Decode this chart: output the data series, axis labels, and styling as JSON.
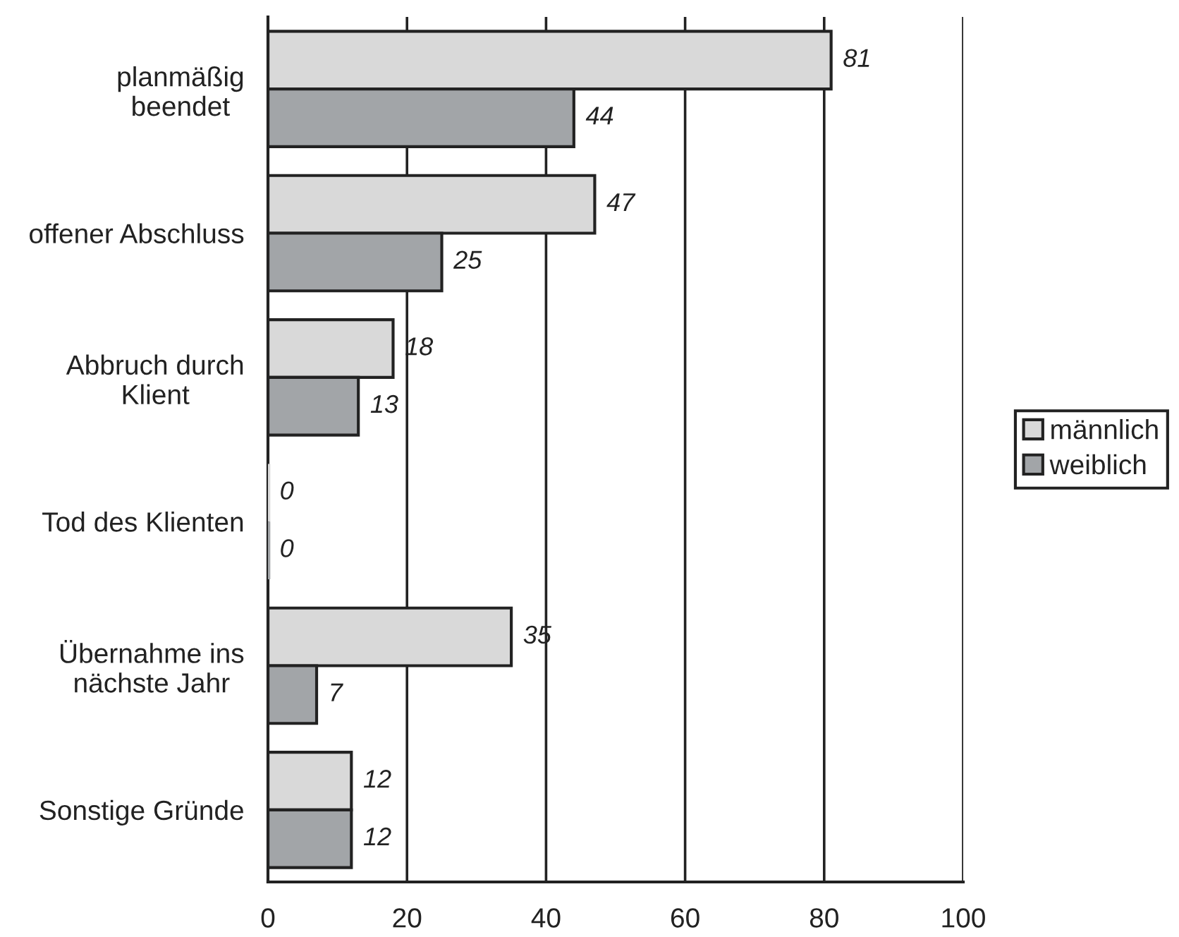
{
  "chart_data": {
    "type": "bar",
    "orientation": "horizontal",
    "categories": [
      "planmäßig\nbeendet",
      "offener Abschluss",
      "Abbruch durch\nKlient",
      "Tod des Klienten",
      "Übernahme ins\nnächste Jahr",
      "Sonstige Gründe"
    ],
    "series": [
      {
        "name": "männlich",
        "color": "#d9d9d9",
        "values": [
          81,
          47,
          18,
          0,
          35,
          12
        ]
      },
      {
        "name": "weiblich",
        "color": "#a2a5a8",
        "values": [
          44,
          25,
          13,
          0,
          7,
          12
        ]
      }
    ],
    "xlim": [
      0,
      100
    ],
    "xticks": [
      0,
      20,
      40,
      60,
      80,
      100
    ],
    "grid": "x",
    "legend": "right",
    "data_labels": true
  }
}
